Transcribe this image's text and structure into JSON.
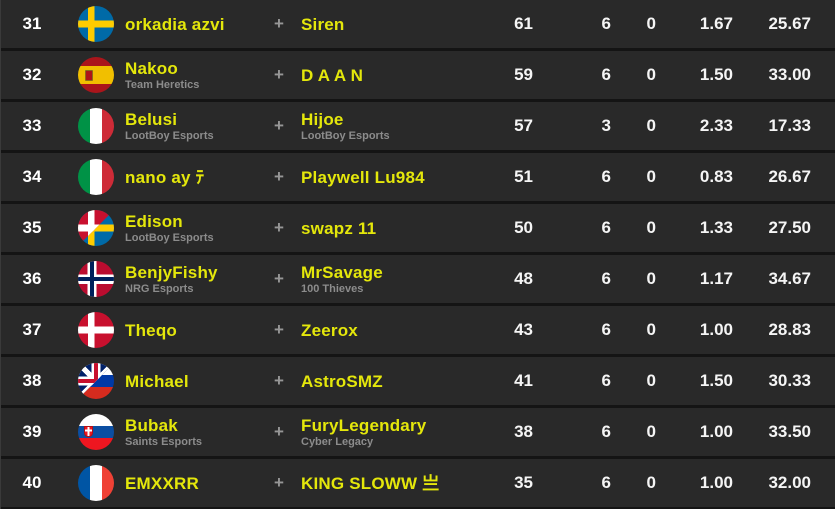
{
  "labels": {
    "plus_sign": "+"
  },
  "colors": {
    "accent_yellow": "#e4e70b",
    "row_background": "#292929",
    "separator": "#141414",
    "rank_white": "#ffffff",
    "team_gray": "#8c8c8c",
    "plus_gray": "#969696"
  },
  "rows": [
    {
      "rank": "31",
      "flag": {
        "code": "se",
        "country": "Sweden"
      },
      "p1": {
        "name": "orkadia azvi",
        "team": ""
      },
      "p2": {
        "name": "Siren",
        "team": ""
      },
      "stats": [
        "61",
        "6",
        "0",
        "1.67",
        "25.67"
      ]
    },
    {
      "rank": "32",
      "flag": {
        "code": "es",
        "country": "Spain"
      },
      "p1": {
        "name": "Nakoo",
        "team": "Team Heretics"
      },
      "p2": {
        "name": "D A A N",
        "team": ""
      },
      "stats": [
        "59",
        "6",
        "0",
        "1.50",
        "33.00"
      ]
    },
    {
      "rank": "33",
      "flag": {
        "code": "it",
        "country": "Italy"
      },
      "p1": {
        "name": "Belusi",
        "team": "LootBoy Esports"
      },
      "p2": {
        "name": "Hijoe",
        "team": "LootBoy Esports"
      },
      "stats": [
        "57",
        "3",
        "0",
        "2.33",
        "17.33"
      ]
    },
    {
      "rank": "34",
      "flag": {
        "code": "it",
        "country": "Italy"
      },
      "p1": {
        "name": "nano ay ﾃ",
        "team": ""
      },
      "p2": {
        "name": "Playwell Lu984",
        "team": ""
      },
      "stats": [
        "51",
        "6",
        "0",
        "0.83",
        "26.67"
      ]
    },
    {
      "rank": "35",
      "flag": {
        "code": "dk-se",
        "country": "Denmark / Sweden"
      },
      "p1": {
        "name": "Edison",
        "team": "LootBoy Esports"
      },
      "p2": {
        "name": "swapz 11",
        "team": ""
      },
      "stats": [
        "50",
        "6",
        "0",
        "1.33",
        "27.50"
      ]
    },
    {
      "rank": "36",
      "flag": {
        "code": "no",
        "country": "Norway"
      },
      "p1": {
        "name": "BenjyFishy",
        "team": "NRG Esports"
      },
      "p2": {
        "name": "MrSavage",
        "team": "100 Thieves"
      },
      "stats": [
        "48",
        "6",
        "0",
        "1.17",
        "34.67"
      ]
    },
    {
      "rank": "37",
      "flag": {
        "code": "dk",
        "country": "Denmark"
      },
      "p1": {
        "name": "Theqo",
        "team": ""
      },
      "p2": {
        "name": "Zeerox",
        "team": ""
      },
      "stats": [
        "43",
        "6",
        "0",
        "1.00",
        "28.83"
      ]
    },
    {
      "rank": "38",
      "flag": {
        "code": "gb-ru",
        "country": "United Kingdom / Russia"
      },
      "p1": {
        "name": "Michael",
        "team": ""
      },
      "p2": {
        "name": "AstroSMZ",
        "team": ""
      },
      "stats": [
        "41",
        "6",
        "0",
        "1.50",
        "30.33"
      ]
    },
    {
      "rank": "39",
      "flag": {
        "code": "sk",
        "country": "Slovakia"
      },
      "p1": {
        "name": "Bubak",
        "team": "Saints Esports"
      },
      "p2": {
        "name": "FuryLegendary",
        "team": "Cyber Legacy"
      },
      "stats": [
        "38",
        "6",
        "0",
        "1.00",
        "33.50"
      ]
    },
    {
      "rank": "40",
      "flag": {
        "code": "fr",
        "country": "France"
      },
      "p1": {
        "name": "EMXXRR",
        "team": ""
      },
      "p2": {
        "name": "KING SLOWW 亗",
        "team": ""
      },
      "stats": [
        "35",
        "6",
        "0",
        "1.00",
        "32.00"
      ]
    }
  ]
}
